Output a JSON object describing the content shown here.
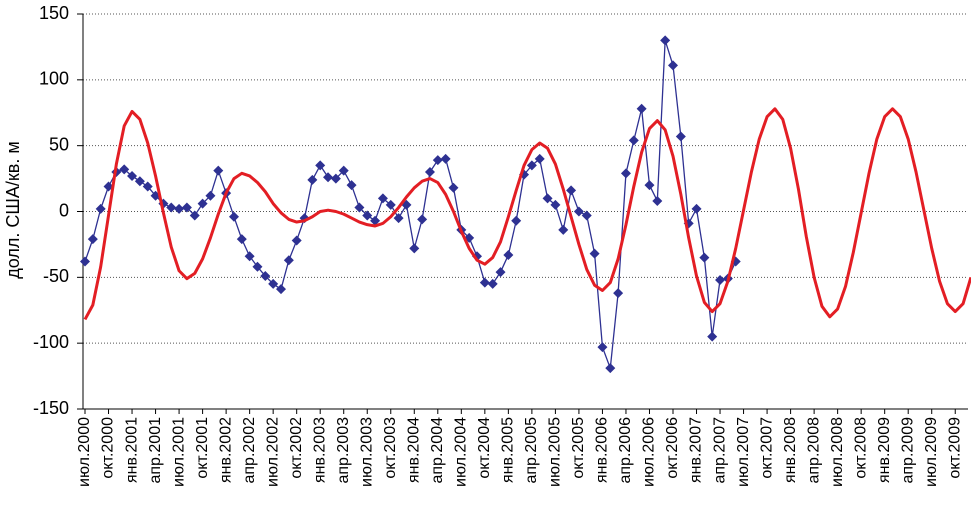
{
  "chart_data": {
    "type": "line",
    "ylabel": "долл. США/кв. м",
    "categories": [
      "июл.2000",
      null,
      null,
      "окт.2000",
      null,
      null,
      "янв.2001",
      null,
      null,
      "апр.2001",
      null,
      null,
      "июл.2001",
      null,
      null,
      "окт.2001",
      null,
      null,
      "янв.2002",
      null,
      null,
      "апр.2002",
      null,
      null,
      "июл.2002",
      null,
      null,
      "окт.2002",
      null,
      null,
      "янв.2003",
      null,
      null,
      "апр.2003",
      null,
      null,
      "июл.2003",
      null,
      null,
      "окт.2003",
      null,
      null,
      "янв.2004",
      null,
      null,
      "апр.2004",
      null,
      null,
      "июл.2004",
      null,
      null,
      "окт.2004",
      null,
      null,
      "янв.2005",
      null,
      null,
      "апр.2005",
      null,
      null,
      "июл.2005",
      null,
      null,
      "окт.2005",
      null,
      null,
      "янв.2006",
      null,
      null,
      "апр.2006",
      null,
      null,
      "июл.2006",
      null,
      null,
      "окт.2006",
      null,
      null,
      "янв.2007",
      null,
      null,
      "апр.2007",
      null,
      null,
      "июл.2007",
      null,
      null,
      "окт.2007",
      null,
      null,
      "янв.2008",
      null,
      null,
      "апр.2008",
      null,
      null,
      "июл.2008",
      null,
      null,
      "окт.2008",
      null,
      null,
      "янв.2009",
      null,
      null,
      "апр.2009",
      null,
      null,
      "июл.2009",
      null,
      null,
      "окт.2009",
      null,
      null
    ],
    "series": [
      {
        "color": "#2e3192",
        "marker": "diamond",
        "values": [
          -38,
          -21,
          2,
          19,
          30,
          32,
          27,
          23,
          19,
          12,
          6,
          3,
          2,
          3,
          -3,
          6,
          12,
          31,
          14,
          -4,
          -21,
          -34,
          -42,
          -49,
          -55,
          -59,
          -37,
          -22,
          -5,
          24,
          35,
          26,
          25,
          31,
          20,
          3,
          -3,
          -7,
          10,
          5,
          -5,
          5,
          -28,
          -6,
          30,
          39,
          40,
          18,
          -14,
          -20,
          -34,
          -54,
          -55,
          -46,
          -33,
          -7,
          28,
          35,
          40,
          10,
          5,
          -14,
          16,
          0,
          -3,
          -32,
          -103,
          -119,
          -62,
          29,
          54,
          78,
          20,
          8,
          130,
          111,
          57,
          -9,
          2,
          -35,
          -95,
          -52,
          -51,
          -38,
          null,
          null,
          null,
          null,
          null,
          null,
          null,
          null,
          null,
          null,
          null,
          null,
          null,
          null,
          null,
          null,
          null,
          null,
          null,
          null,
          null,
          null,
          null,
          null,
          null,
          null,
          null,
          null,
          null,
          null
        ]
      },
      {
        "color": "#e31e24",
        "values": [
          -82,
          -71,
          -42,
          -3,
          36,
          65,
          76,
          70,
          52,
          27,
          -1,
          -27,
          -45,
          -51,
          -47,
          -36,
          -20,
          -2,
          14,
          25,
          29,
          27,
          22,
          15,
          6,
          -1,
          -6,
          -8,
          -7,
          -4,
          0,
          1,
          0,
          -2,
          -5,
          -8,
          -10,
          -11,
          -9,
          -4,
          3,
          11,
          18,
          23,
          25,
          22,
          13,
          0,
          -15,
          -28,
          -37,
          -40,
          -35,
          -23,
          -4,
          16,
          35,
          47,
          52,
          48,
          36,
          17,
          -4,
          -25,
          -44,
          -56,
          -60,
          -54,
          -36,
          -10,
          19,
          45,
          63,
          69,
          62,
          42,
          13,
          -20,
          -49,
          -69,
          -76,
          -70,
          -53,
          -28,
          1,
          30,
          55,
          72,
          78,
          70,
          48,
          17,
          -19,
          -50,
          -72,
          -80,
          -74,
          -57,
          -31,
          -1,
          29,
          55,
          72,
          78,
          72,
          55,
          30,
          1,
          -28,
          -53,
          -70,
          -76,
          -70,
          -50
        ]
      }
    ],
    "ylim": [
      -150,
      150
    ],
    "yticks": [
      -150,
      -100,
      -50,
      0,
      50,
      100,
      150
    ],
    "grid": true
  }
}
